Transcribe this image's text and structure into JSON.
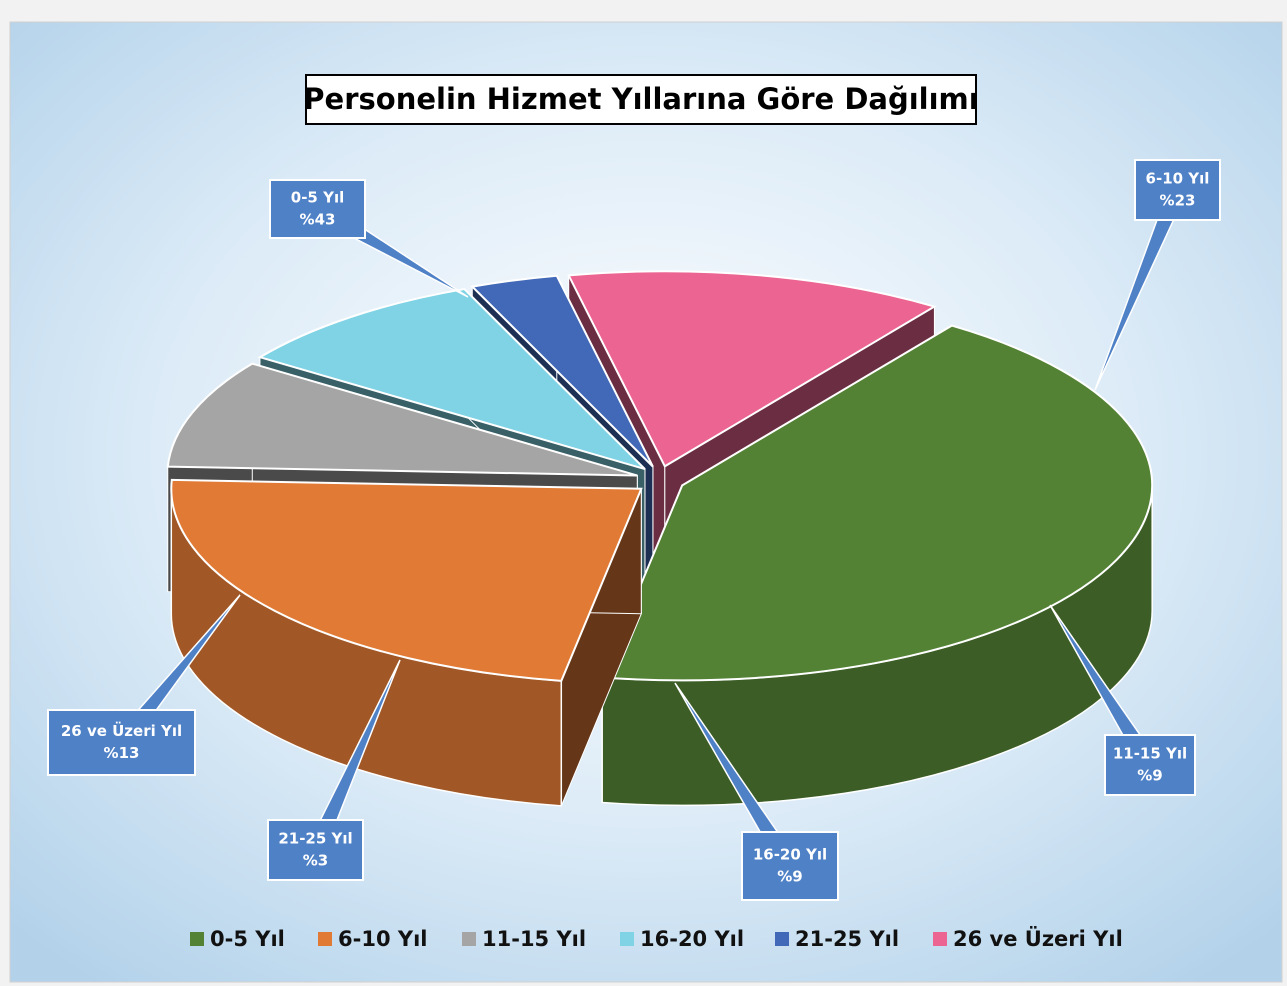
{
  "chart_data": {
    "type": "pie3d",
    "title": "Personelin Hizmet Yıllarına  Göre Dağılımı",
    "categories": [
      "0-5 Yıl",
      "6-10 Yıl",
      "11-15 Yıl",
      "16-20 Yıl",
      "21-25 Yıl",
      "26 ve Üzeri Yıl"
    ],
    "values": [
      43,
      23,
      9,
      9,
      3,
      13
    ],
    "value_labels": [
      "%43",
      "%23",
      "%9",
      "%9",
      "%3",
      "%13"
    ],
    "colors": [
      "#548235",
      "#e07a35",
      "#a5a5a5",
      "#7fd3e5",
      "#4169b8",
      "#ec6592"
    ],
    "legend": "bottom"
  }
}
